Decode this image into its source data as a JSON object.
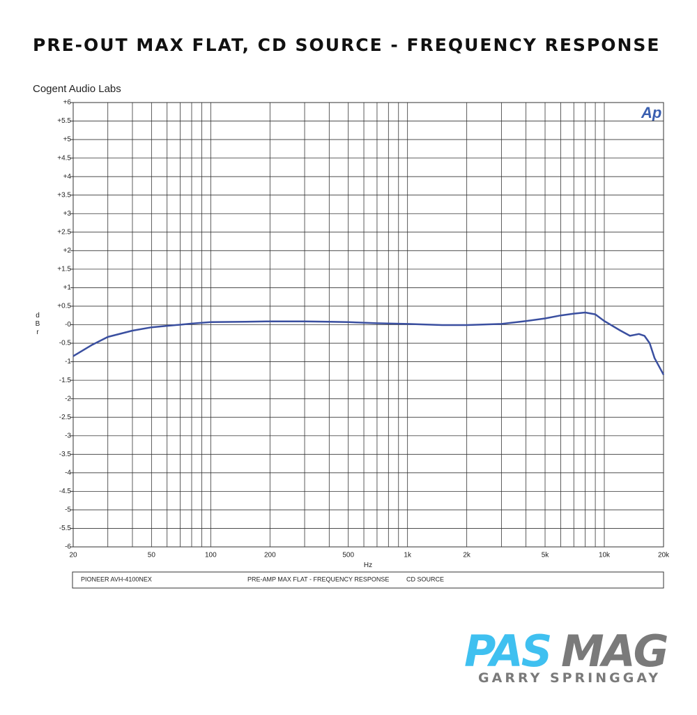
{
  "header": {
    "title": "PRE-OUT MAX FLAT, CD SOURCE - FREQUENCY RESPONSE",
    "source": "Cogent Audio Labs",
    "badge": "Ap"
  },
  "chart_data": {
    "type": "line",
    "x_label": "Hz",
    "y_label": "dBr",
    "log_x": true,
    "grid": true,
    "x": [
      20,
      25,
      30,
      40,
      50,
      60,
      70,
      80,
      100,
      150,
      200,
      300,
      400,
      500,
      700,
      1000,
      1500,
      2000,
      3000,
      4000,
      5000,
      6000,
      7000,
      8000,
      9000,
      10000,
      12000,
      13500,
      15000,
      16000,
      17000,
      18000,
      20000
    ],
    "series": [
      {
        "name": "PIONEER AVH-4100NEX",
        "color": "#3a4fa0",
        "values": [
          -0.85,
          -0.54,
          -0.33,
          -0.16,
          -0.07,
          -0.03,
          0,
          0.03,
          0.07,
          0.08,
          0.09,
          0.09,
          0.08,
          0.07,
          0.04,
          0.02,
          -0.01,
          -0.01,
          0.02,
          0.1,
          0.17,
          0.25,
          0.3,
          0.33,
          0.28,
          0.1,
          -0.15,
          -0.3,
          -0.25,
          -0.3,
          -0.5,
          -0.9,
          -1.35
        ]
      }
    ],
    "xlim": [
      20,
      20000
    ],
    "xticks": [
      20,
      50,
      100,
      200,
      500,
      {
        "value": 1000,
        "label": "1k"
      },
      {
        "value": 2000,
        "label": "2k"
      },
      {
        "value": 5000,
        "label": "5k"
      },
      {
        "value": 10000,
        "label": "10k"
      },
      {
        "value": 20000,
        "label": "20k"
      }
    ],
    "xminor": [
      30,
      40,
      60,
      70,
      80,
      90,
      300,
      400,
      600,
      700,
      800,
      900,
      3000,
      4000,
      6000,
      7000,
      8000,
      9000
    ],
    "ylim": [
      -6,
      6
    ],
    "yticks": [
      {
        "value": 6,
        "label": "+6"
      },
      {
        "value": 5.5,
        "label": "+5.5"
      },
      {
        "value": 5,
        "label": "+5"
      },
      {
        "value": 4.5,
        "label": "+4.5"
      },
      {
        "value": 4,
        "label": "+4"
      },
      {
        "value": 3.5,
        "label": "+3.5"
      },
      {
        "value": 3,
        "label": "+3"
      },
      {
        "value": 2.5,
        "label": "+2.5"
      },
      {
        "value": 2,
        "label": "+2"
      },
      {
        "value": 1.5,
        "label": "+1.5"
      },
      {
        "value": 1,
        "label": "+1"
      },
      {
        "value": 0.5,
        "label": "+0.5"
      },
      {
        "value": 0,
        "label": "-0"
      },
      -0.5,
      -1,
      -1.5,
      -2,
      -2.5,
      -3,
      -3.5,
      -4,
      -4.5,
      -5,
      -5.5,
      -6
    ],
    "footer": [
      "PIONEER AVH-4100NEX",
      "PRE-AMP MAX FLAT  -  FREQUENCY RESPONSE",
      "CD SOURCE"
    ]
  },
  "logo": {
    "part1": "PAS",
    "part2": "MAG",
    "author": "GARRY SPRINGGAY"
  }
}
